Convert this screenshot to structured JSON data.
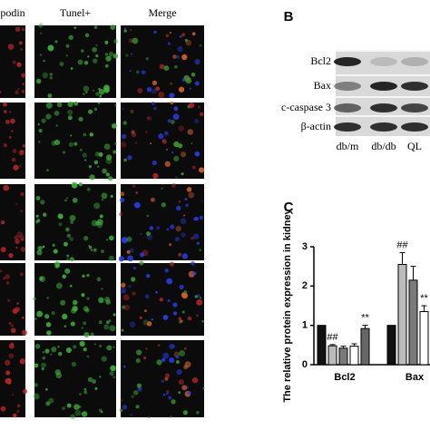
{
  "panel_a": {
    "headers": [
      "podin",
      "Tunel+",
      "Merge"
    ]
  },
  "panel_b": {
    "label": "B",
    "rows": [
      "Bcl2",
      "Bax",
      "c-caspase 3",
      "β-actin"
    ],
    "lanes": [
      "db/m",
      "db/db",
      "QL"
    ]
  },
  "chart_data": {
    "type": "bar",
    "panel_label": "C",
    "ylabel": "The relative protein expression in kidney",
    "categories": [
      "Bcl2",
      "Bax"
    ],
    "series": [
      {
        "color": "#111111",
        "values": [
          1.0,
          1.0
        ],
        "errors": [
          0,
          0
        ],
        "annotations": [
          null,
          null
        ]
      },
      {
        "color": "#bbbbbb",
        "values": [
          0.48,
          2.55
        ],
        "errors": [
          0.03,
          0.3
        ],
        "annotations": [
          "##",
          "##"
        ]
      },
      {
        "color": "#7a7a7a",
        "values": [
          0.42,
          2.15
        ],
        "errors": [
          0.05,
          0.35
        ],
        "annotations": [
          null,
          null
        ]
      },
      {
        "color": "#ffffff",
        "values": [
          0.47,
          1.35
        ],
        "errors": [
          0.06,
          0.15
        ],
        "annotations": [
          null,
          "**"
        ]
      },
      {
        "color": "#666666",
        "values": [
          0.92,
          null
        ],
        "errors": [
          0.08,
          null
        ],
        "annotations": [
          "**",
          null
        ]
      }
    ],
    "ylim": [
      0,
      3
    ],
    "yticks": [
      0,
      1,
      2,
      3
    ]
  }
}
